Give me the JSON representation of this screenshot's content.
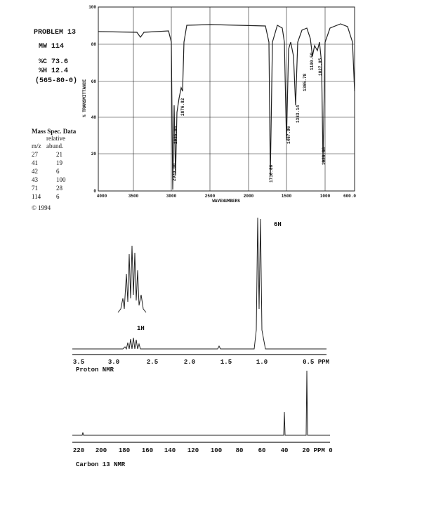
{
  "info": {
    "problem": "PROBLEM 13",
    "mw": "MW 114",
    "carbon": "%C 73.6",
    "hydrogen": "%H 12.4",
    "cas": "(565-80-0)"
  },
  "mass_spec": {
    "title": "Mass Spec. Data",
    "header1": "relative",
    "header2_mz": "m/z",
    "header2_abund": "abund.",
    "rows": [
      [
        "27",
        "21"
      ],
      [
        "41",
        "19"
      ],
      [
        "42",
        "6"
      ],
      [
        "43",
        "100"
      ],
      [
        "71",
        "28"
      ],
      [
        "114",
        "6"
      ]
    ]
  },
  "copyright": "©  1994",
  "ir": {
    "y_label": "% TRANSMITTANCE",
    "x_label": "WAVENUMBERS",
    "yticks": [
      "100",
      "80",
      "60",
      "40",
      "20",
      "0"
    ],
    "xticks": [
      "4000",
      "3500",
      "3000",
      "2500",
      "2000",
      "1500",
      "1000",
      "600.0"
    ],
    "peaks": [
      "2970.00",
      "2935.65",
      "2876.82",
      "1716.86",
      "1467.96",
      "1383.14",
      "1365.78",
      "1100.50",
      "1027.05",
      "1026.88"
    ]
  },
  "proton": {
    "label": "Proton NMR",
    "ticks": [
      "3.5",
      "3.0",
      "2.5",
      "2.0",
      "1.5",
      "1.0",
      "0.5 PPM"
    ],
    "int_6h": "6H",
    "int_1h": "1H"
  },
  "carbon": {
    "label": "Carbon 13 NMR",
    "ticks": [
      "220",
      "200",
      "180",
      "160",
      "140",
      "120",
      "100",
      "80",
      "60",
      "40",
      "20 PPM 0"
    ]
  }
}
